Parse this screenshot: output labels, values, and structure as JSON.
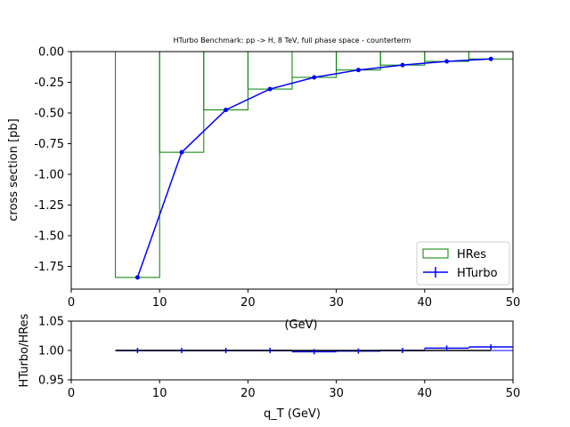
{
  "chart_data": [
    {
      "type": "step",
      "title": "HTurbo Benchmark: pp -> H, 8 TeV, full phase space - counterterm",
      "ylabel": "cross section [pb]",
      "xlabel_hidden": "(GeV)",
      "xlim": [
        0,
        50
      ],
      "ylim": [
        -1.935,
        0.0
      ],
      "x_ticks": [
        "0",
        "10",
        "20",
        "30",
        "40",
        "50"
      ],
      "y_ticks": [
        "0.00",
        "-0.25",
        "-0.50",
        "-0.75",
        "-1.00",
        "-1.25",
        "-1.50",
        "-1.75"
      ],
      "bin_edges": [
        5,
        10,
        15,
        20,
        25,
        30,
        35,
        40,
        45,
        50
      ],
      "series": [
        {
          "name": "HRes",
          "kind": "histogram",
          "color": "#008000",
          "values": [
            -1.84,
            -0.82,
            -0.475,
            -0.305,
            -0.21,
            -0.15,
            -0.11,
            -0.08,
            -0.06
          ]
        },
        {
          "name": "HTurbo",
          "kind": "line-points",
          "color": "#0000ff",
          "x": [
            7.5,
            12.5,
            17.5,
            22.5,
            27.5,
            32.5,
            37.5,
            42.5,
            47.5
          ],
          "values": [
            -1.84,
            -0.82,
            -0.475,
            -0.305,
            -0.21,
            -0.15,
            -0.11,
            -0.08,
            -0.06
          ]
        }
      ],
      "legend": [
        "HRes",
        "HTurbo"
      ],
      "legend_position": "bottom-right",
      "grid": false
    },
    {
      "type": "step",
      "ylabel": "HTurbo/HRes",
      "xlabel": "q_T (GeV)",
      "xlim": [
        0,
        50
      ],
      "ylim": [
        0.95,
        1.05
      ],
      "x_ticks": [
        "0",
        "10",
        "20",
        "30",
        "40",
        "50"
      ],
      "y_ticks": [
        "0.95",
        "1.00",
        "1.05"
      ],
      "bin_edges": [
        5,
        10,
        15,
        20,
        25,
        30,
        35,
        40,
        45,
        50
      ],
      "series": [
        {
          "name": "HTurbo/HRes",
          "color": "#0000ff",
          "values": [
            1.0,
            1.0,
            1.0,
            1.0,
            0.998,
            0.999,
            1.0,
            1.004,
            1.006
          ]
        }
      ],
      "reference_line": {
        "y": 1.0,
        "x_range": [
          5,
          47.5
        ],
        "color": "#000000"
      },
      "grid": false
    }
  ]
}
